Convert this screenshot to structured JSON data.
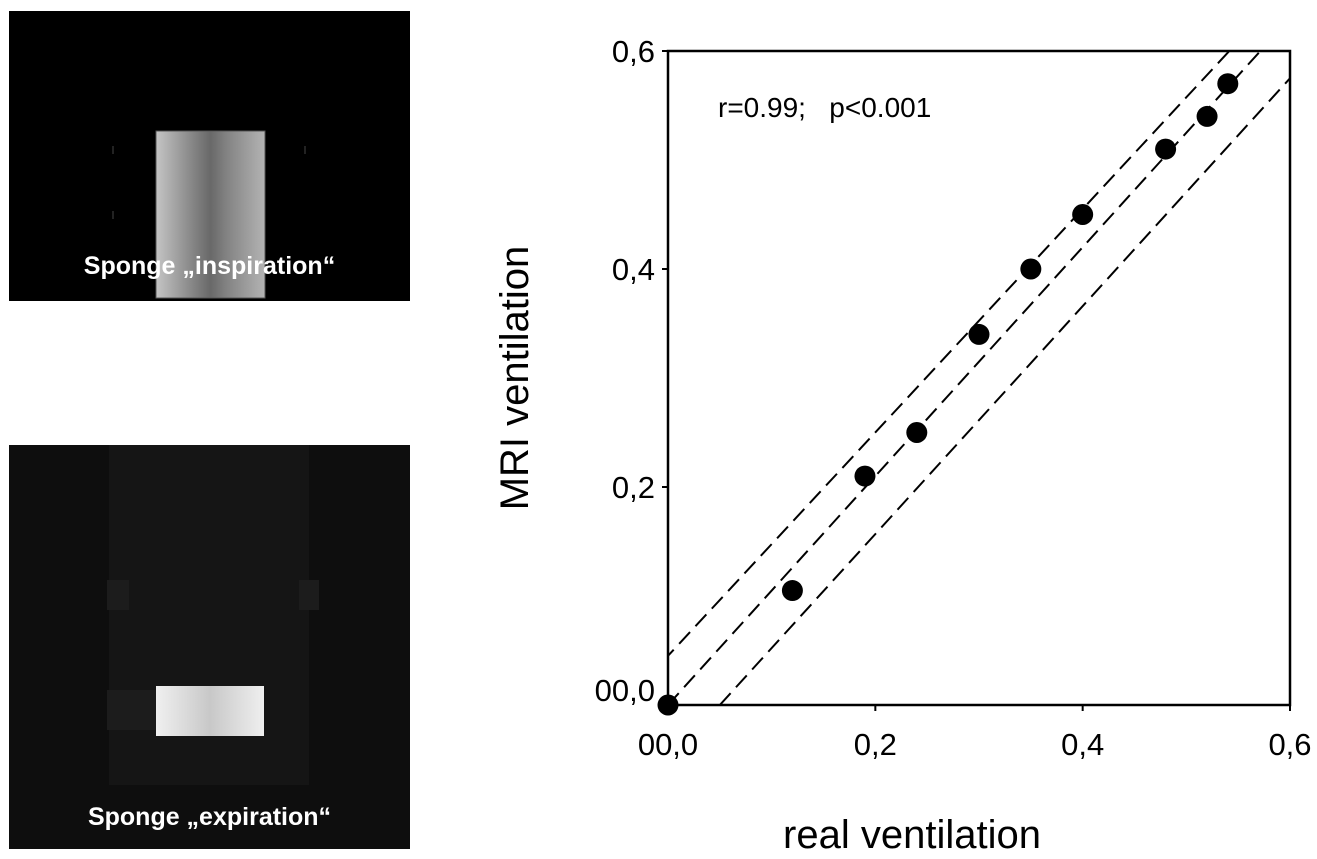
{
  "images": {
    "top": {
      "caption": "Sponge „inspiration“",
      "description": "sponge-mri-inspiration"
    },
    "bottom": {
      "caption": "Sponge „expiration“",
      "description": "sponge-mri-expiration"
    }
  },
  "chart_data": {
    "type": "scatter",
    "title": "",
    "xlabel": "real ventilation",
    "ylabel": "MRI ventilation",
    "xlim": [
      0,
      0.6
    ],
    "ylim": [
      0,
      0.6
    ],
    "x_ticks": [
      {
        "v": 0,
        "label": "00,0"
      },
      {
        "v": 0.2,
        "label": "0,2"
      },
      {
        "v": 0.4,
        "label": "0,4"
      },
      {
        "v": 0.6,
        "label": "0,6"
      }
    ],
    "y_ticks": [
      {
        "v": 0,
        "label": "00,0"
      },
      {
        "v": 0.2,
        "label": "0,2"
      },
      {
        "v": 0.4,
        "label": "0,4"
      },
      {
        "v": 0.6,
        "label": "0,6"
      }
    ],
    "annotation": "r=0.99;   p<0.001",
    "points": [
      {
        "x": 0.0,
        "y": 0.0
      },
      {
        "x": 0.12,
        "y": 0.105
      },
      {
        "x": 0.19,
        "y": 0.21
      },
      {
        "x": 0.24,
        "y": 0.25
      },
      {
        "x": 0.3,
        "y": 0.34
      },
      {
        "x": 0.35,
        "y": 0.4
      },
      {
        "x": 0.4,
        "y": 0.45
      },
      {
        "x": 0.48,
        "y": 0.51
      },
      {
        "x": 0.52,
        "y": 0.54
      },
      {
        "x": 0.54,
        "y": 0.57
      }
    ],
    "lines": [
      {
        "name": "",
        "style": "dashed",
        "x": [
          0.0,
          0.6
        ],
        "y": [
          0.0,
          0.63
        ]
      },
      {
        "name": "",
        "style": "dashed",
        "x": [
          -0.005,
          0.6
        ],
        "y": [
          0.04,
          0.66
        ]
      },
      {
        "name": "",
        "style": "dashed",
        "x": [
          0.05,
          0.6
        ],
        "y": [
          0.0,
          0.575
        ]
      }
    ],
    "grid": false,
    "legend": "none",
    "colors": {
      "marker": "#000000",
      "line": "#000000"
    }
  }
}
